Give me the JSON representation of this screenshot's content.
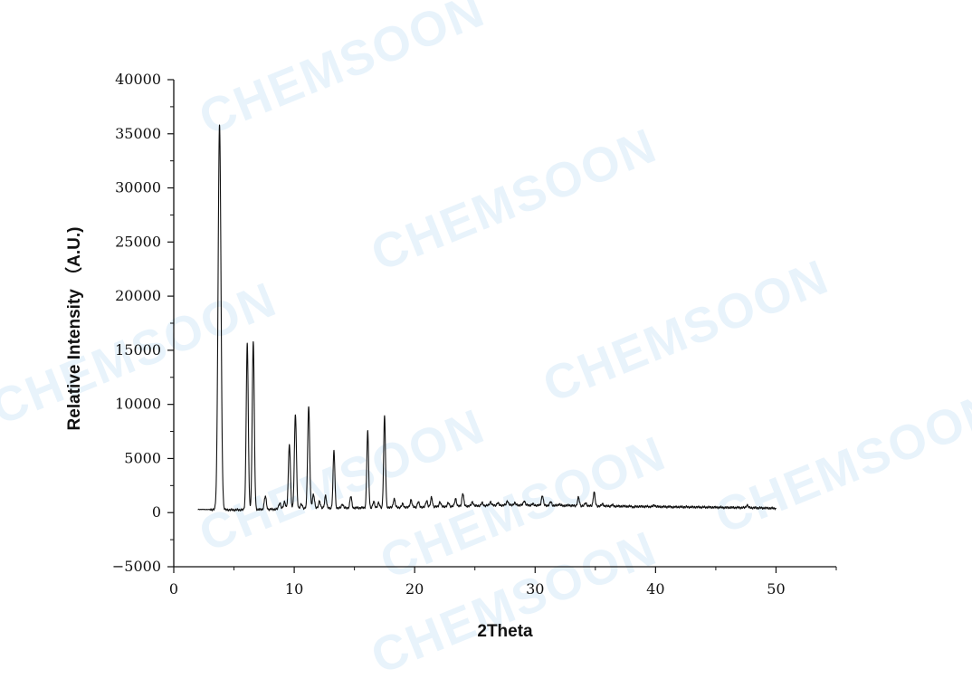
{
  "watermark": {
    "text": "CHEMSOON",
    "color": "#e8f3fb"
  },
  "chart_data": {
    "type": "line",
    "xlabel": "2Theta",
    "ylabel": "Relative Intensity （A.U.)",
    "xlim": [
      0,
      55
    ],
    "ylim": [
      -5000,
      40000
    ],
    "x_ticks": [
      0,
      10,
      20,
      30,
      40,
      50
    ],
    "y_ticks": [
      -5000,
      0,
      5000,
      10000,
      15000,
      20000,
      25000,
      30000,
      35000,
      40000
    ],
    "x_range": [
      2,
      50
    ],
    "grid": false,
    "legend": "none",
    "line_color": "#111111",
    "series": [
      {
        "baseline": [
          [
            2,
            300
          ],
          [
            5,
            250
          ],
          [
            8,
            300
          ],
          [
            12,
            400
          ],
          [
            16,
            450
          ],
          [
            20,
            500
          ],
          [
            24,
            600
          ],
          [
            28,
            700
          ],
          [
            32,
            650
          ],
          [
            36,
            600
          ],
          [
            40,
            550
          ],
          [
            44,
            500
          ],
          [
            48,
            450
          ],
          [
            50,
            400
          ]
        ],
        "peaks": [
          [
            3.8,
            35800
          ],
          [
            6.1,
            15600
          ],
          [
            6.6,
            15800
          ],
          [
            7.6,
            1500
          ],
          [
            8.8,
            900
          ],
          [
            9.2,
            1000
          ],
          [
            9.6,
            6300
          ],
          [
            10.1,
            9100
          ],
          [
            10.6,
            800
          ],
          [
            11.2,
            9800
          ],
          [
            11.6,
            1700
          ],
          [
            12.1,
            1100
          ],
          [
            12.6,
            1600
          ],
          [
            13.3,
            5700
          ],
          [
            14.0,
            800
          ],
          [
            14.7,
            1500
          ],
          [
            16.1,
            7500
          ],
          [
            16.6,
            1000
          ],
          [
            17.0,
            900
          ],
          [
            17.5,
            8900
          ],
          [
            18.3,
            1300
          ],
          [
            19.0,
            800
          ],
          [
            19.7,
            1200
          ],
          [
            20.3,
            1000
          ],
          [
            21.0,
            1100
          ],
          [
            21.4,
            1400
          ],
          [
            22.1,
            1000
          ],
          [
            22.8,
            900
          ],
          [
            23.4,
            1300
          ],
          [
            24.0,
            1800
          ],
          [
            24.8,
            1000
          ],
          [
            25.6,
            900
          ],
          [
            26.3,
            1000
          ],
          [
            26.9,
            900
          ],
          [
            27.7,
            1100
          ],
          [
            28.3,
            900
          ],
          [
            29.1,
            1100
          ],
          [
            29.8,
            800
          ],
          [
            30.6,
            1600
          ],
          [
            31.3,
            1000
          ],
          [
            32.0,
            800
          ],
          [
            32.8,
            700
          ],
          [
            33.6,
            1400
          ],
          [
            34.2,
            900
          ],
          [
            34.9,
            1900
          ],
          [
            35.6,
            800
          ],
          [
            36.4,
            700
          ],
          [
            37.3,
            600
          ],
          [
            38.2,
            500
          ],
          [
            39.9,
            700
          ],
          [
            41.5,
            500
          ],
          [
            44.2,
            500
          ],
          [
            45.8,
            450
          ],
          [
            47.6,
            700
          ]
        ]
      }
    ]
  }
}
